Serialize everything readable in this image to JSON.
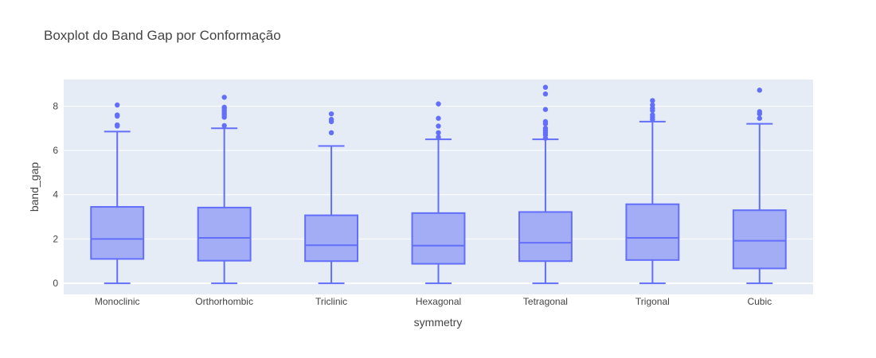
{
  "chart_data": {
    "type": "box",
    "title": "Boxplot do Band Gap por Conformação",
    "xlabel": "symmetry",
    "ylabel": "band_gap",
    "ylim": [
      -0.5,
      9.2
    ],
    "yticks": [
      0,
      2,
      4,
      6,
      8
    ],
    "grid": true,
    "colors": {
      "plot_bg": "#e5ecf6",
      "grid": "#ffffff",
      "box_fill": "#a3adf6",
      "box_line": "#636efa",
      "text": "#444444"
    },
    "categories": [
      "Monoclinic",
      "Orthorhombic",
      "Triclinic",
      "Hexagonal",
      "Tetragonal",
      "Trigonal",
      "Cubic"
    ],
    "boxes": [
      {
        "min": 0,
        "q1": 1.1,
        "median": 2.0,
        "q3": 3.45,
        "max": 6.85,
        "outliers": [
          7.1,
          7.15,
          7.55,
          7.6,
          8.05
        ]
      },
      {
        "min": 0,
        "q1": 1.02,
        "median": 2.05,
        "q3": 3.42,
        "max": 7.0,
        "outliers": [
          7.12,
          7.5,
          7.6,
          7.7,
          7.8,
          7.9,
          7.95,
          8.4
        ]
      },
      {
        "min": 0,
        "q1": 1.0,
        "median": 1.72,
        "q3": 3.07,
        "max": 6.2,
        "outliers": [
          6.8,
          7.3,
          7.4,
          7.65
        ]
      },
      {
        "min": 0,
        "q1": 0.88,
        "median": 1.7,
        "q3": 3.17,
        "max": 6.5,
        "outliers": [
          6.6,
          6.8,
          7.1,
          7.45,
          8.1
        ]
      },
      {
        "min": 0,
        "q1": 1.0,
        "median": 1.83,
        "q3": 3.22,
        "max": 6.5,
        "outliers": [
          6.55,
          6.7,
          6.8,
          6.9,
          7.0,
          7.2,
          7.3,
          7.85,
          8.55,
          8.85
        ]
      },
      {
        "min": 0,
        "q1": 1.05,
        "median": 2.05,
        "q3": 3.57,
        "max": 7.3,
        "outliers": [
          7.4,
          7.5,
          7.6,
          7.8,
          7.9,
          8.05,
          8.25
        ]
      },
      {
        "min": 0,
        "q1": 0.67,
        "median": 1.92,
        "q3": 3.3,
        "max": 7.2,
        "outliers": [
          7.45,
          7.65,
          7.75,
          8.72
        ]
      }
    ]
  }
}
